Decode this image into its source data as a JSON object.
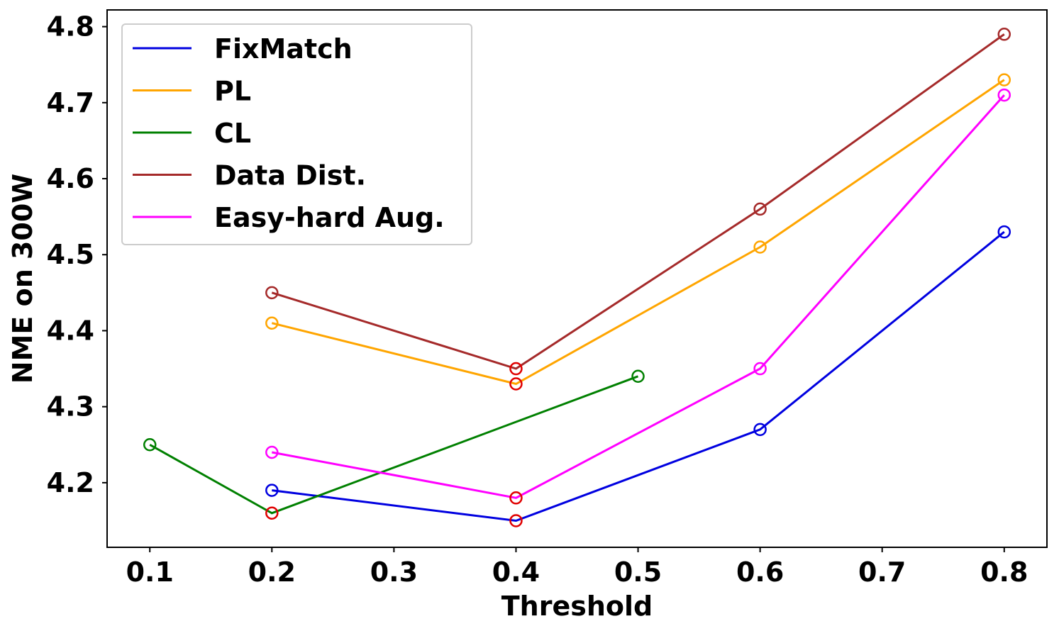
{
  "chart_data": {
    "type": "line",
    "xlabel": "Threshold",
    "ylabel": "NME on 300W",
    "xlim": [
      0.065,
      0.835
    ],
    "ylim": [
      4.115,
      4.822
    ],
    "xticks": [
      "0.1",
      "0.2",
      "0.3",
      "0.4",
      "0.5",
      "0.6",
      "0.7",
      "0.8"
    ],
    "yticks": [
      "4.2",
      "4.3",
      "4.4",
      "4.5",
      "4.6",
      "4.7",
      "4.8"
    ],
    "legend_position": "upper-left",
    "highlight_color": "#e00000",
    "series": [
      {
        "name": "FixMatch",
        "color": "#0000e0",
        "x": [
          0.2,
          0.4,
          0.6,
          0.8
        ],
        "y": [
          4.19,
          4.15,
          4.27,
          4.53
        ],
        "highlight": [
          false,
          true,
          false,
          false
        ]
      },
      {
        "name": "PL",
        "color": "#ffa500",
        "x": [
          0.2,
          0.4,
          0.6,
          0.8
        ],
        "y": [
          4.41,
          4.33,
          4.51,
          4.73
        ],
        "highlight": [
          false,
          true,
          false,
          false
        ]
      },
      {
        "name": "CL",
        "color": "#008000",
        "x": [
          0.1,
          0.2,
          0.5
        ],
        "y": [
          4.25,
          4.16,
          4.34
        ],
        "highlight": [
          false,
          true,
          false
        ]
      },
      {
        "name": "Data Dist.",
        "color": "#a52a2a",
        "x": [
          0.2,
          0.4,
          0.6,
          0.8
        ],
        "y": [
          4.45,
          4.35,
          4.56,
          4.79
        ],
        "highlight": [
          false,
          true,
          false,
          false
        ]
      },
      {
        "name": "Easy-hard Aug.",
        "color": "#ff00ff",
        "x": [
          0.2,
          0.4,
          0.6,
          0.8
        ],
        "y": [
          4.24,
          4.18,
          4.35,
          4.71
        ],
        "highlight": [
          false,
          true,
          false,
          false
        ]
      }
    ]
  }
}
